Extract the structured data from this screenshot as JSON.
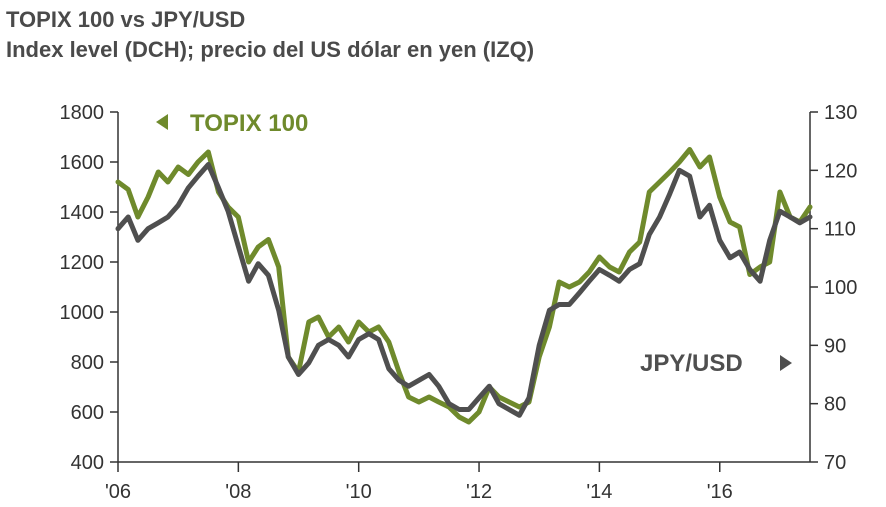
{
  "chart_data": {
    "type": "line",
    "title": "TOPIX 100 vs JPY/USD",
    "subtitle": "Index level (DCH); precio del US dólar en yen (IZQ)",
    "x_tick_labels": [
      "'06",
      "'08",
      "'10",
      "'12",
      "'14",
      "'16"
    ],
    "x_ticks": [
      2006,
      2008,
      2010,
      2012,
      2014,
      2016
    ],
    "xlim": [
      2006,
      2017.5
    ],
    "left_axis": {
      "ylim": [
        400,
        1800
      ],
      "ticks": [
        400,
        600,
        800,
        1000,
        1200,
        1400,
        1600,
        1800
      ]
    },
    "right_axis": {
      "ylim": [
        70,
        130
      ],
      "ticks": [
        70,
        80,
        90,
        100,
        110,
        120,
        130
      ]
    },
    "legend_placement": "inline-labels",
    "grid": false,
    "series": [
      {
        "name": "TOPIX 100",
        "axis": "left",
        "color": "#6f8a2c",
        "legend_marker": "left-arrow",
        "x": [
          2006.0,
          2006.17,
          2006.33,
          2006.5,
          2006.67,
          2006.83,
          2007.0,
          2007.17,
          2007.33,
          2007.5,
          2007.67,
          2007.83,
          2008.0,
          2008.17,
          2008.33,
          2008.5,
          2008.67,
          2008.83,
          2009.0,
          2009.17,
          2009.33,
          2009.5,
          2009.67,
          2009.83,
          2010.0,
          2010.17,
          2010.33,
          2010.5,
          2010.67,
          2010.83,
          2011.0,
          2011.17,
          2011.33,
          2011.5,
          2011.67,
          2011.83,
          2012.0,
          2012.17,
          2012.33,
          2012.5,
          2012.67,
          2012.83,
          2013.0,
          2013.17,
          2013.33,
          2013.5,
          2013.67,
          2013.83,
          2014.0,
          2014.17,
          2014.33,
          2014.5,
          2014.67,
          2014.83,
          2015.0,
          2015.17,
          2015.33,
          2015.5,
          2015.67,
          2015.83,
          2016.0,
          2016.17,
          2016.33,
          2016.5,
          2016.67,
          2016.83,
          2017.0,
          2017.17,
          2017.33,
          2017.5
        ],
        "values": [
          1520,
          1490,
          1380,
          1460,
          1560,
          1520,
          1580,
          1550,
          1600,
          1640,
          1480,
          1420,
          1380,
          1200,
          1260,
          1290,
          1180,
          820,
          760,
          960,
          980,
          900,
          940,
          880,
          960,
          920,
          940,
          880,
          760,
          660,
          640,
          660,
          640,
          620,
          580,
          560,
          600,
          700,
          660,
          640,
          620,
          640,
          820,
          940,
          1120,
          1100,
          1120,
          1160,
          1220,
          1180,
          1160,
          1240,
          1280,
          1480,
          1520,
          1560,
          1600,
          1650,
          1580,
          1620,
          1460,
          1360,
          1340,
          1150,
          1180,
          1200,
          1480,
          1380,
          1360,
          1420
        ]
      },
      {
        "name": "JPY/USD",
        "axis": "right",
        "color": "#4f4f4f",
        "legend_marker": "right-arrow",
        "x": [
          2006.0,
          2006.17,
          2006.33,
          2006.5,
          2006.67,
          2006.83,
          2007.0,
          2007.17,
          2007.33,
          2007.5,
          2007.67,
          2007.83,
          2008.0,
          2008.17,
          2008.33,
          2008.5,
          2008.67,
          2008.83,
          2009.0,
          2009.17,
          2009.33,
          2009.5,
          2009.67,
          2009.83,
          2010.0,
          2010.17,
          2010.33,
          2010.5,
          2010.67,
          2010.83,
          2011.0,
          2011.17,
          2011.33,
          2011.5,
          2011.67,
          2011.83,
          2012.0,
          2012.17,
          2012.33,
          2012.5,
          2012.67,
          2012.83,
          2013.0,
          2013.17,
          2013.33,
          2013.5,
          2013.67,
          2013.83,
          2014.0,
          2014.17,
          2014.33,
          2014.5,
          2014.67,
          2014.83,
          2015.0,
          2015.17,
          2015.33,
          2015.5,
          2015.67,
          2015.83,
          2016.0,
          2016.17,
          2016.33,
          2016.5,
          2016.67,
          2016.83,
          2017.0,
          2017.17,
          2017.33,
          2017.5
        ],
        "values": [
          110,
          112,
          108,
          110,
          111,
          112,
          114,
          117,
          119,
          121,
          117,
          113,
          107,
          101,
          104,
          102,
          96,
          88,
          85,
          87,
          90,
          91,
          90,
          88,
          91,
          92,
          91,
          86,
          84,
          83,
          84,
          85,
          83,
          80,
          79,
          79,
          81,
          83,
          80,
          79,
          78,
          81,
          90,
          96,
          97,
          97,
          99,
          101,
          103,
          102,
          101,
          103,
          104,
          109,
          112,
          116,
          120,
          119,
          112,
          114,
          108,
          105,
          106,
          103,
          101,
          108,
          113,
          112,
          111,
          112
        ]
      }
    ]
  }
}
